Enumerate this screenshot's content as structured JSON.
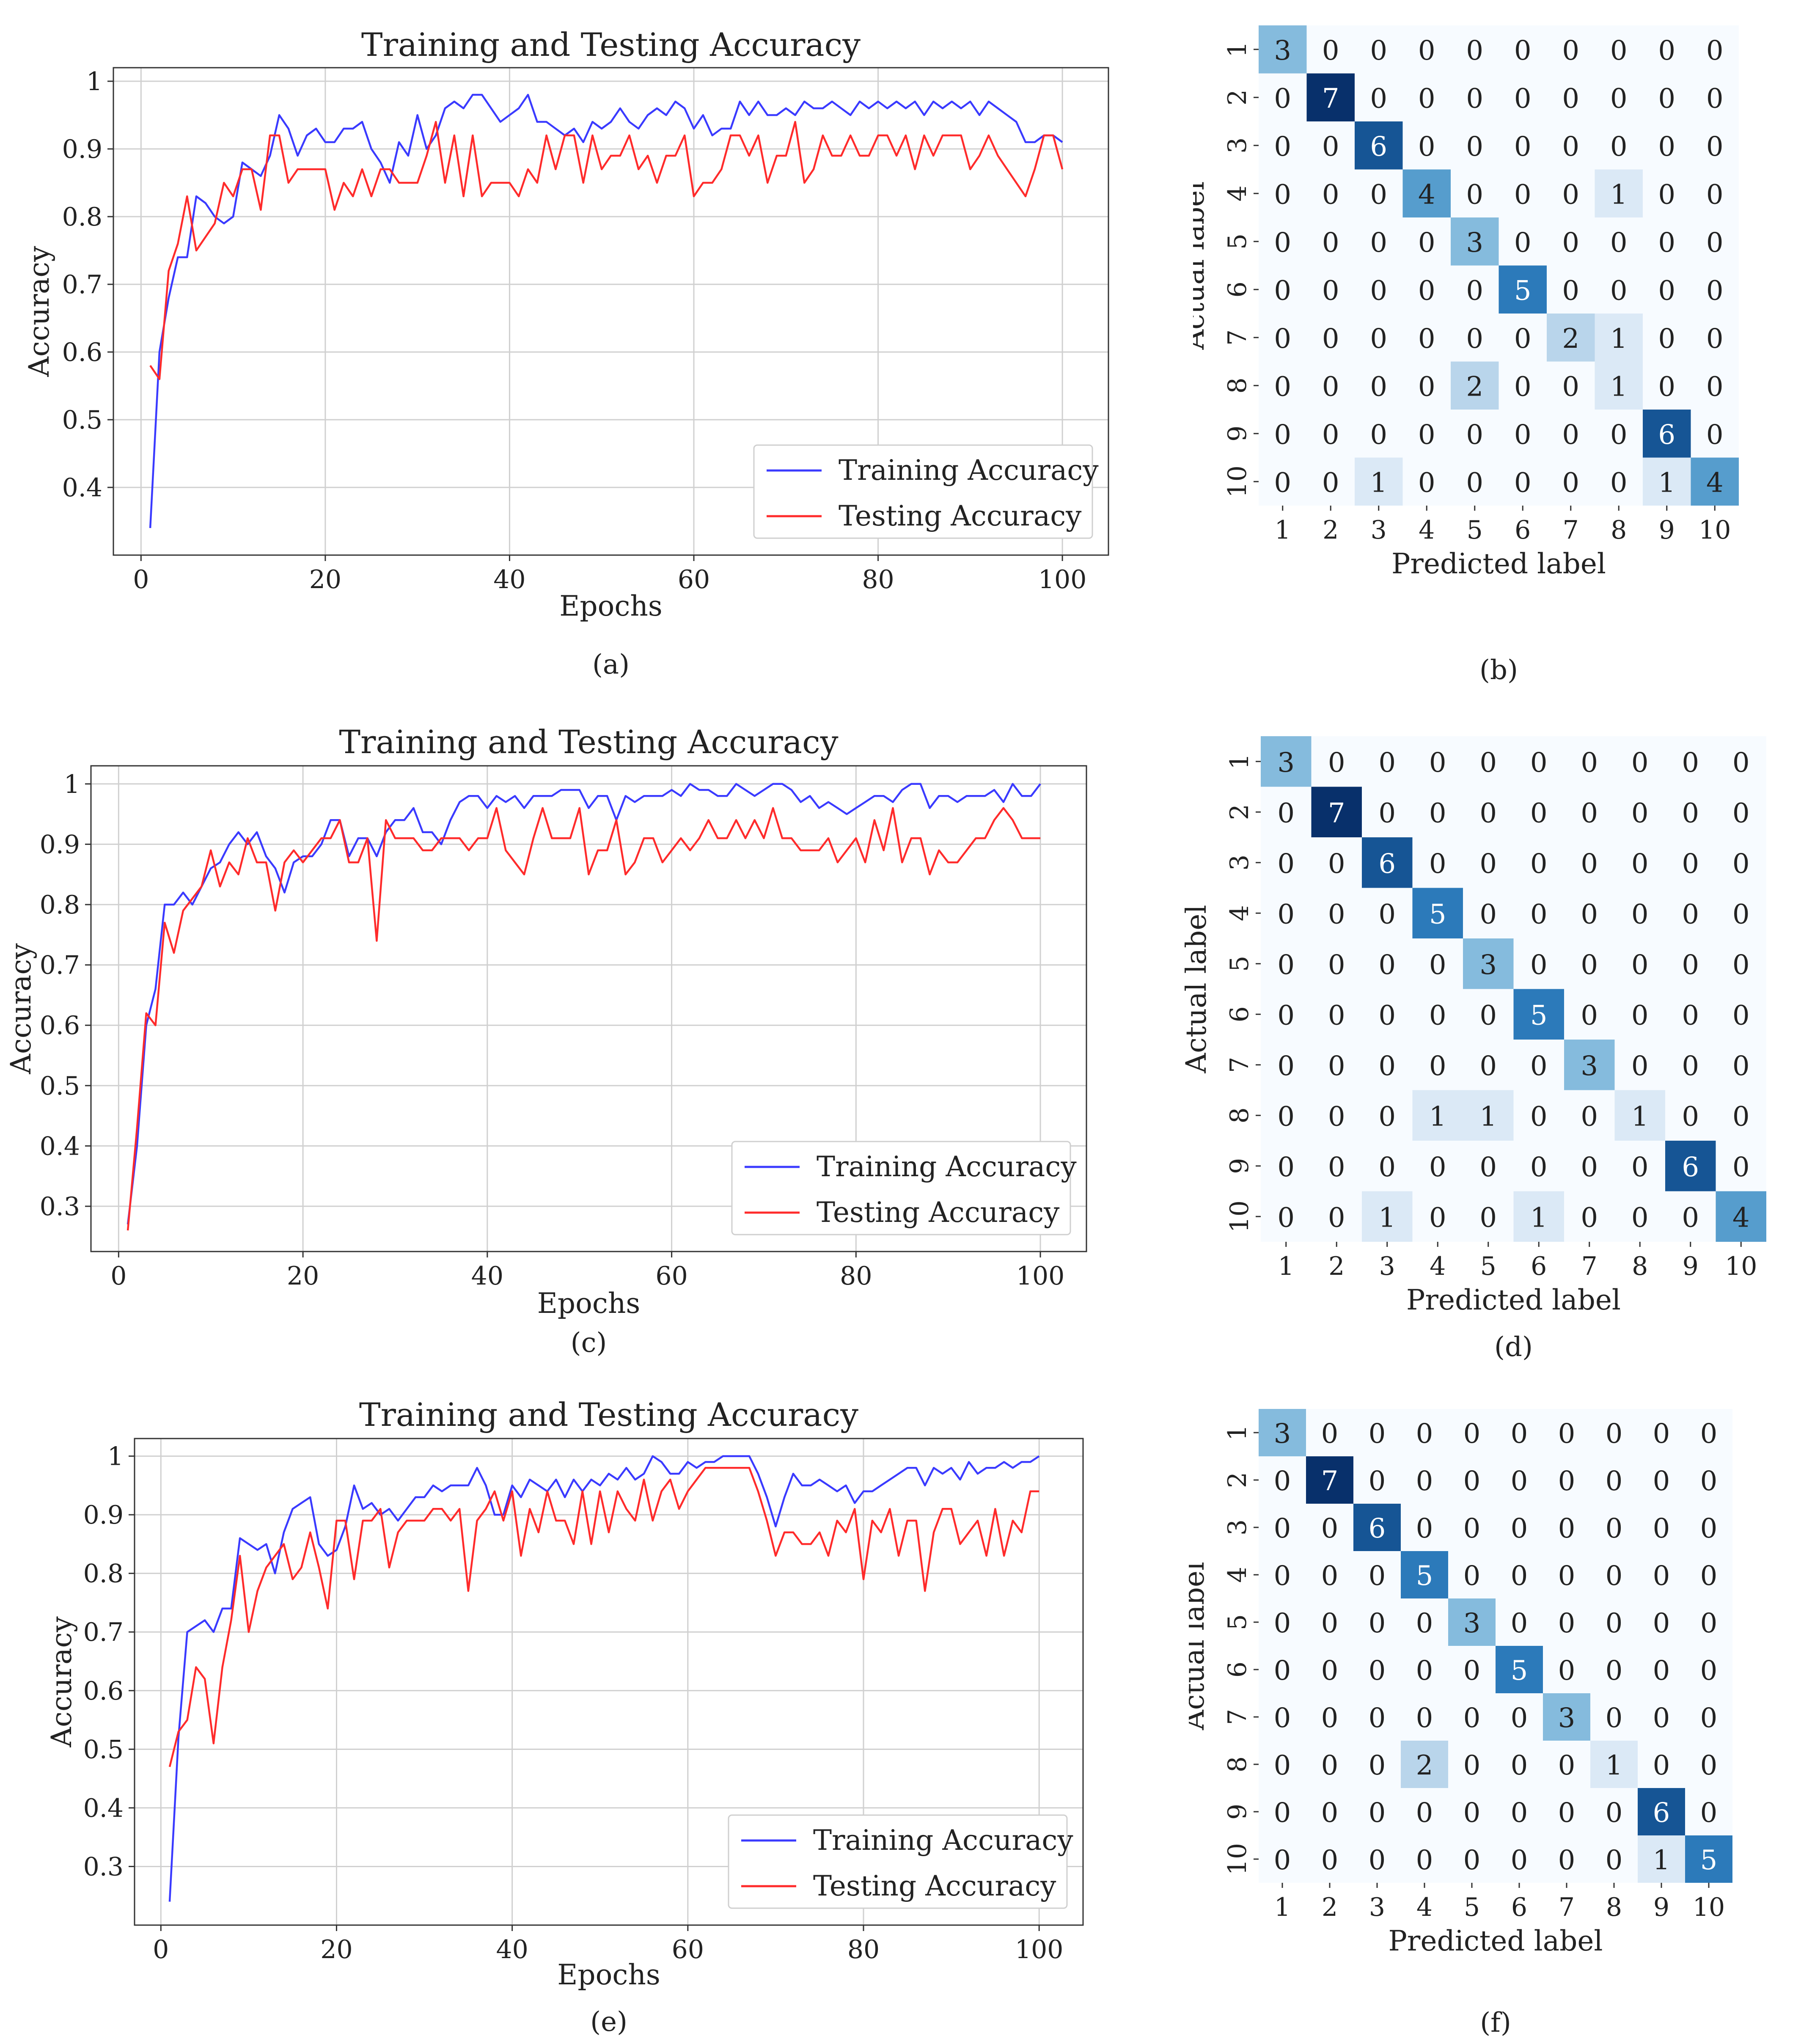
{
  "panel_letters": [
    "a",
    "b",
    "c",
    "d",
    "e",
    "f"
  ],
  "chart_data": [
    {
      "panel": "a",
      "type": "line",
      "title": "Training and Testing Accuracy",
      "xlabel": "Epochs",
      "ylabel": "Accuracy",
      "xlim": [
        -3,
        105
      ],
      "ylim": [
        0.3,
        1.02
      ],
      "xticks": [
        0,
        20,
        40,
        60,
        80,
        100
      ],
      "yticks": [
        0.4,
        0.5,
        0.6,
        0.7,
        0.8,
        0.9,
        1.0
      ],
      "grid": true,
      "legend_position": "bottom-right",
      "series": [
        {
          "name": "Training Accuracy",
          "color": "#3a3aff",
          "values": [
            0.34,
            0.6,
            0.68,
            0.74,
            0.74,
            0.83,
            0.82,
            0.8,
            0.79,
            0.8,
            0.88,
            0.87,
            0.86,
            0.89,
            0.95,
            0.93,
            0.89,
            0.92,
            0.93,
            0.91,
            0.91,
            0.93,
            0.93,
            0.94,
            0.9,
            0.88,
            0.85,
            0.91,
            0.89,
            0.95,
            0.9,
            0.92,
            0.96,
            0.97,
            0.96,
            0.98,
            0.98,
            0.96,
            0.94,
            0.95,
            0.96,
            0.98,
            0.94,
            0.94,
            0.93,
            0.92,
            0.93,
            0.91,
            0.94,
            0.93,
            0.94,
            0.96,
            0.94,
            0.93,
            0.95,
            0.96,
            0.95,
            0.97,
            0.96,
            0.93,
            0.95,
            0.92,
            0.93,
            0.93,
            0.97,
            0.95,
            0.97,
            0.95,
            0.95,
            0.96,
            0.95,
            0.97,
            0.96,
            0.96,
            0.97,
            0.96,
            0.95,
            0.97,
            0.96,
            0.97,
            0.96,
            0.97,
            0.96,
            0.97,
            0.95,
            0.97,
            0.96,
            0.97,
            0.96,
            0.97,
            0.95,
            0.97,
            0.96,
            0.95,
            0.94,
            0.91,
            0.91,
            0.92,
            0.92,
            0.91
          ]
        },
        {
          "name": "Testing Accuracy",
          "color": "#ff2b2b",
          "values": [
            0.58,
            0.56,
            0.72,
            0.76,
            0.83,
            0.75,
            0.77,
            0.79,
            0.85,
            0.83,
            0.87,
            0.87,
            0.81,
            0.92,
            0.92,
            0.85,
            0.87,
            0.87,
            0.87,
            0.87,
            0.81,
            0.85,
            0.83,
            0.87,
            0.83,
            0.87,
            0.87,
            0.85,
            0.85,
            0.85,
            0.89,
            0.94,
            0.85,
            0.92,
            0.83,
            0.92,
            0.83,
            0.85,
            0.85,
            0.85,
            0.83,
            0.87,
            0.85,
            0.92,
            0.87,
            0.92,
            0.92,
            0.85,
            0.92,
            0.87,
            0.89,
            0.89,
            0.92,
            0.87,
            0.89,
            0.85,
            0.89,
            0.89,
            0.92,
            0.83,
            0.85,
            0.85,
            0.87,
            0.92,
            0.92,
            0.89,
            0.92,
            0.85,
            0.89,
            0.89,
            0.94,
            0.85,
            0.87,
            0.92,
            0.89,
            0.89,
            0.92,
            0.89,
            0.89,
            0.92,
            0.92,
            0.89,
            0.92,
            0.87,
            0.92,
            0.89,
            0.92,
            0.92,
            0.92,
            0.87,
            0.89,
            0.92,
            0.89,
            0.87,
            0.85,
            0.83,
            0.87,
            0.92,
            0.92,
            0.87
          ]
        }
      ]
    },
    {
      "panel": "b",
      "type": "heatmap",
      "xlabel": "Predicted label",
      "ylabel": "Actual label",
      "labels": [
        "1",
        "2",
        "3",
        "4",
        "5",
        "6",
        "7",
        "8",
        "9",
        "10"
      ],
      "matrix": [
        [
          3,
          0,
          0,
          0,
          0,
          0,
          0,
          0,
          0,
          0
        ],
        [
          0,
          7,
          0,
          0,
          0,
          0,
          0,
          0,
          0,
          0
        ],
        [
          0,
          0,
          6,
          0,
          0,
          0,
          0,
          0,
          0,
          0
        ],
        [
          0,
          0,
          0,
          4,
          0,
          0,
          0,
          1,
          0,
          0
        ],
        [
          0,
          0,
          0,
          0,
          3,
          0,
          0,
          0,
          0,
          0
        ],
        [
          0,
          0,
          0,
          0,
          0,
          5,
          0,
          0,
          0,
          0
        ],
        [
          0,
          0,
          0,
          0,
          0,
          0,
          2,
          1,
          0,
          0
        ],
        [
          0,
          0,
          0,
          0,
          2,
          0,
          0,
          1,
          0,
          0
        ],
        [
          0,
          0,
          0,
          0,
          0,
          0,
          0,
          0,
          6,
          0
        ],
        [
          0,
          0,
          1,
          0,
          0,
          0,
          0,
          0,
          1,
          4
        ]
      ]
    },
    {
      "panel": "c",
      "type": "line",
      "title": "Training and Testing Accuracy",
      "xlabel": "Epochs",
      "ylabel": "Accuracy",
      "xlim": [
        -3,
        105
      ],
      "ylim": [
        0.225,
        1.03
      ],
      "xticks": [
        0,
        20,
        40,
        60,
        80,
        100
      ],
      "yticks": [
        0.3,
        0.4,
        0.5,
        0.6,
        0.7,
        0.8,
        0.9,
        1.0
      ],
      "grid": true,
      "legend_position": "bottom-right",
      "series": [
        {
          "name": "Training Accuracy",
          "color": "#3a3aff",
          "values": [
            0.27,
            0.4,
            0.6,
            0.66,
            0.8,
            0.8,
            0.82,
            0.8,
            0.83,
            0.86,
            0.87,
            0.9,
            0.92,
            0.9,
            0.92,
            0.88,
            0.86,
            0.82,
            0.87,
            0.88,
            0.88,
            0.9,
            0.94,
            0.94,
            0.88,
            0.91,
            0.91,
            0.88,
            0.92,
            0.94,
            0.94,
            0.96,
            0.92,
            0.92,
            0.9,
            0.94,
            0.97,
            0.98,
            0.98,
            0.96,
            0.98,
            0.97,
            0.98,
            0.96,
            0.98,
            0.98,
            0.98,
            0.99,
            0.99,
            0.99,
            0.96,
            0.98,
            0.98,
            0.94,
            0.98,
            0.97,
            0.98,
            0.98,
            0.98,
            0.99,
            0.98,
            1.0,
            0.99,
            0.99,
            0.98,
            0.98,
            1.0,
            0.99,
            0.98,
            0.99,
            1.0,
            1.0,
            0.99,
            0.97,
            0.98,
            0.96,
            0.97,
            0.96,
            0.95,
            0.96,
            0.97,
            0.98,
            0.98,
            0.97,
            0.99,
            1.0,
            1.0,
            0.96,
            0.98,
            0.98,
            0.97,
            0.98,
            0.98,
            0.98,
            0.99,
            0.97,
            1.0,
            0.98,
            0.98,
            1.0
          ]
        },
        {
          "name": "Testing Accuracy",
          "color": "#ff2b2b",
          "values": [
            0.26,
            0.43,
            0.62,
            0.6,
            0.77,
            0.72,
            0.79,
            0.81,
            0.83,
            0.89,
            0.83,
            0.87,
            0.85,
            0.91,
            0.87,
            0.87,
            0.79,
            0.87,
            0.89,
            0.87,
            0.89,
            0.91,
            0.91,
            0.94,
            0.87,
            0.87,
            0.91,
            0.74,
            0.94,
            0.91,
            0.91,
            0.91,
            0.89,
            0.89,
            0.91,
            0.91,
            0.91,
            0.89,
            0.91,
            0.91,
            0.96,
            0.89,
            0.87,
            0.85,
            0.91,
            0.96,
            0.91,
            0.91,
            0.91,
            0.96,
            0.85,
            0.89,
            0.89,
            0.94,
            0.85,
            0.87,
            0.91,
            0.91,
            0.87,
            0.89,
            0.91,
            0.89,
            0.91,
            0.94,
            0.91,
            0.91,
            0.94,
            0.91,
            0.94,
            0.91,
            0.96,
            0.91,
            0.91,
            0.89,
            0.89,
            0.89,
            0.91,
            0.87,
            0.89,
            0.91,
            0.87,
            0.94,
            0.89,
            0.96,
            0.87,
            0.91,
            0.91,
            0.85,
            0.89,
            0.87,
            0.87,
            0.89,
            0.91,
            0.91,
            0.94,
            0.96,
            0.94,
            0.91,
            0.91,
            0.91
          ]
        }
      ]
    },
    {
      "panel": "d",
      "type": "heatmap",
      "xlabel": "Predicted label",
      "ylabel": "Actual label",
      "labels": [
        "1",
        "2",
        "3",
        "4",
        "5",
        "6",
        "7",
        "8",
        "9",
        "10"
      ],
      "matrix": [
        [
          3,
          0,
          0,
          0,
          0,
          0,
          0,
          0,
          0,
          0
        ],
        [
          0,
          7,
          0,
          0,
          0,
          0,
          0,
          0,
          0,
          0
        ],
        [
          0,
          0,
          6,
          0,
          0,
          0,
          0,
          0,
          0,
          0
        ],
        [
          0,
          0,
          0,
          5,
          0,
          0,
          0,
          0,
          0,
          0
        ],
        [
          0,
          0,
          0,
          0,
          3,
          0,
          0,
          0,
          0,
          0
        ],
        [
          0,
          0,
          0,
          0,
          0,
          5,
          0,
          0,
          0,
          0
        ],
        [
          0,
          0,
          0,
          0,
          0,
          0,
          3,
          0,
          0,
          0
        ],
        [
          0,
          0,
          0,
          1,
          1,
          0,
          0,
          1,
          0,
          0
        ],
        [
          0,
          0,
          0,
          0,
          0,
          0,
          0,
          0,
          6,
          0
        ],
        [
          0,
          0,
          1,
          0,
          0,
          1,
          0,
          0,
          0,
          4
        ]
      ]
    },
    {
      "panel": "e",
      "type": "line",
      "title": "Training and Testing Accuracy",
      "xlabel": "Epochs",
      "ylabel": "Accuracy",
      "xlim": [
        -3,
        105
      ],
      "ylim": [
        0.2,
        1.03
      ],
      "xticks": [
        0,
        20,
        40,
        60,
        80,
        100
      ],
      "yticks": [
        0.3,
        0.4,
        0.5,
        0.6,
        0.7,
        0.8,
        0.9,
        1.0
      ],
      "grid": true,
      "legend_position": "bottom-right",
      "series": [
        {
          "name": "Training Accuracy",
          "color": "#3a3aff",
          "values": [
            0.24,
            0.52,
            0.7,
            0.71,
            0.72,
            0.7,
            0.74,
            0.74,
            0.86,
            0.85,
            0.84,
            0.85,
            0.8,
            0.87,
            0.91,
            0.92,
            0.93,
            0.85,
            0.83,
            0.84,
            0.88,
            0.95,
            0.91,
            0.92,
            0.9,
            0.91,
            0.89,
            0.91,
            0.93,
            0.93,
            0.95,
            0.94,
            0.95,
            0.95,
            0.95,
            0.98,
            0.95,
            0.9,
            0.9,
            0.95,
            0.93,
            0.96,
            0.95,
            0.94,
            0.96,
            0.93,
            0.96,
            0.94,
            0.96,
            0.95,
            0.97,
            0.96,
            0.98,
            0.96,
            0.97,
            1.0,
            0.99,
            0.97,
            0.97,
            0.99,
            0.98,
            0.99,
            0.99,
            1.0,
            1.0,
            1.0,
            1.0,
            0.97,
            0.93,
            0.88,
            0.93,
            0.97,
            0.95,
            0.95,
            0.96,
            0.95,
            0.94,
            0.95,
            0.92,
            0.94,
            0.94,
            0.95,
            0.96,
            0.97,
            0.98,
            0.98,
            0.95,
            0.98,
            0.97,
            0.98,
            0.96,
            0.99,
            0.97,
            0.98,
            0.98,
            0.99,
            0.98,
            0.99,
            0.99,
            1.0
          ]
        },
        {
          "name": "Testing Accuracy",
          "color": "#ff2b2b",
          "values": [
            0.47,
            0.53,
            0.55,
            0.64,
            0.62,
            0.51,
            0.64,
            0.72,
            0.83,
            0.7,
            0.77,
            0.81,
            0.83,
            0.85,
            0.79,
            0.81,
            0.87,
            0.81,
            0.74,
            0.89,
            0.89,
            0.79,
            0.89,
            0.89,
            0.91,
            0.81,
            0.87,
            0.89,
            0.89,
            0.89,
            0.91,
            0.91,
            0.89,
            0.91,
            0.77,
            0.89,
            0.91,
            0.94,
            0.89,
            0.94,
            0.83,
            0.91,
            0.87,
            0.94,
            0.89,
            0.89,
            0.85,
            0.94,
            0.85,
            0.94,
            0.87,
            0.94,
            0.91,
            0.89,
            0.96,
            0.89,
            0.94,
            0.96,
            0.91,
            0.94,
            0.96,
            0.98,
            0.98,
            0.98,
            0.98,
            0.98,
            0.98,
            0.94,
            0.89,
            0.83,
            0.87,
            0.87,
            0.85,
            0.85,
            0.87,
            0.83,
            0.89,
            0.87,
            0.91,
            0.79,
            0.89,
            0.87,
            0.91,
            0.83,
            0.89,
            0.89,
            0.77,
            0.87,
            0.91,
            0.91,
            0.85,
            0.87,
            0.89,
            0.83,
            0.91,
            0.83,
            0.89,
            0.87,
            0.94,
            0.94
          ]
        }
      ]
    },
    {
      "panel": "f",
      "type": "heatmap",
      "xlabel": "Predicted label",
      "ylabel": "Actual label",
      "labels": [
        "1",
        "2",
        "3",
        "4",
        "5",
        "6",
        "7",
        "8",
        "9",
        "10"
      ],
      "matrix": [
        [
          3,
          0,
          0,
          0,
          0,
          0,
          0,
          0,
          0,
          0
        ],
        [
          0,
          7,
          0,
          0,
          0,
          0,
          0,
          0,
          0,
          0
        ],
        [
          0,
          0,
          6,
          0,
          0,
          0,
          0,
          0,
          0,
          0
        ],
        [
          0,
          0,
          0,
          5,
          0,
          0,
          0,
          0,
          0,
          0
        ],
        [
          0,
          0,
          0,
          0,
          3,
          0,
          0,
          0,
          0,
          0
        ],
        [
          0,
          0,
          0,
          0,
          0,
          5,
          0,
          0,
          0,
          0
        ],
        [
          0,
          0,
          0,
          0,
          0,
          0,
          3,
          0,
          0,
          0
        ],
        [
          0,
          0,
          0,
          2,
          0,
          0,
          0,
          1,
          0,
          0
        ],
        [
          0,
          0,
          0,
          0,
          0,
          0,
          0,
          0,
          6,
          0
        ],
        [
          0,
          0,
          0,
          0,
          0,
          0,
          0,
          0,
          1,
          5
        ]
      ]
    }
  ]
}
